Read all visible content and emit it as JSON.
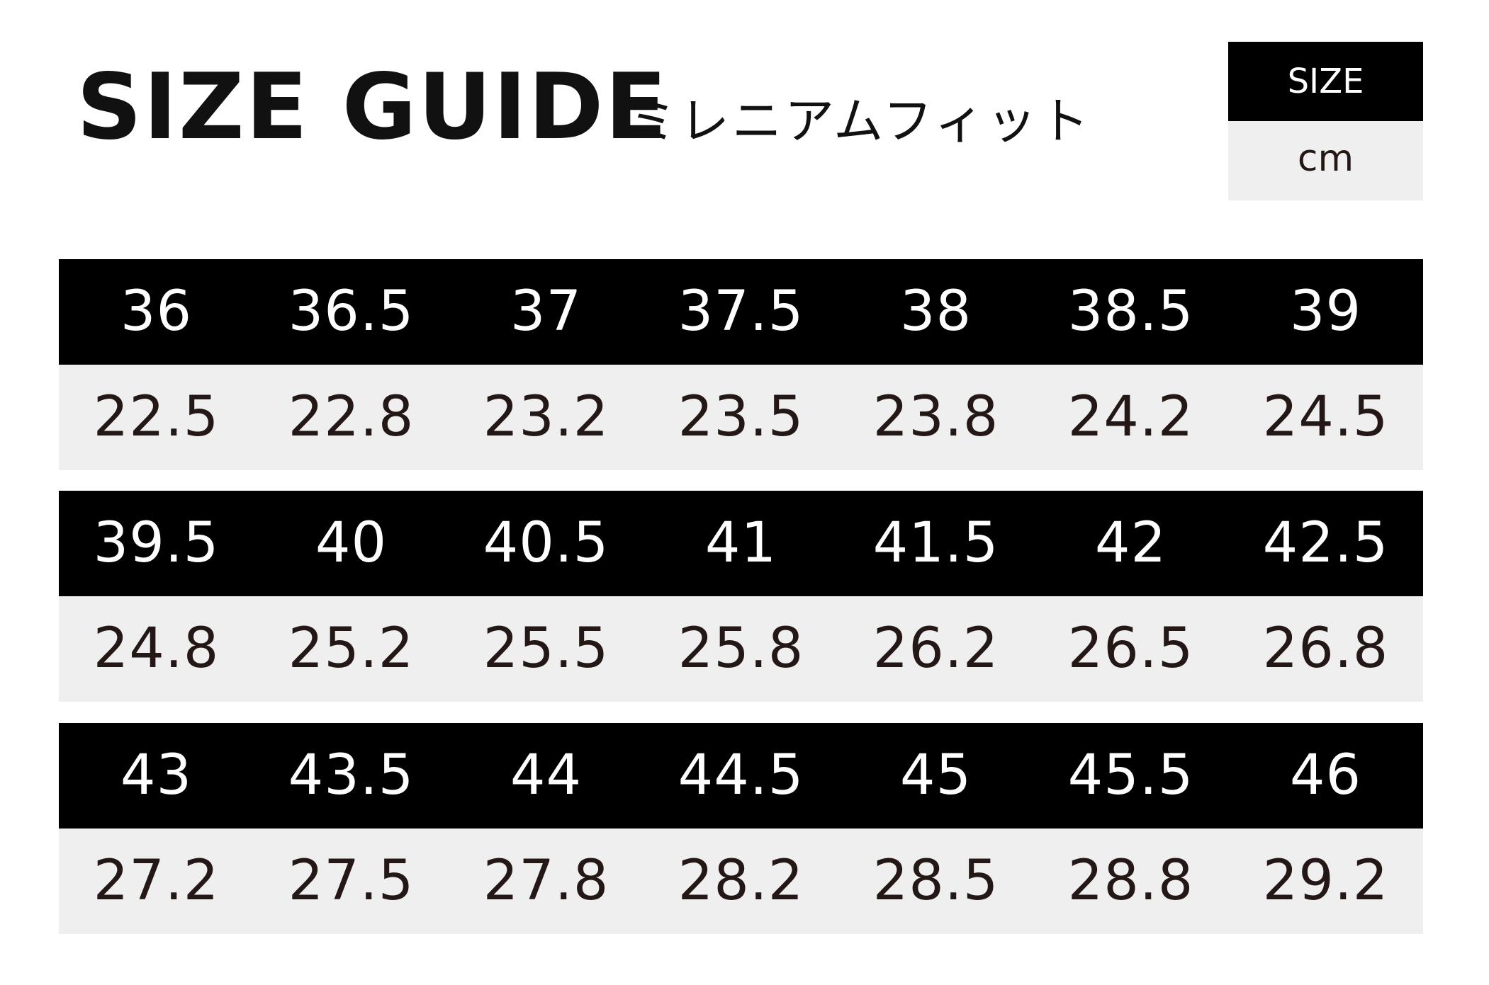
{
  "header": {
    "title": "SIZE GUIDE",
    "subtitle": "ミレニアムフィット"
  },
  "legend": {
    "size_label": "SIZE",
    "unit_label": "cm"
  },
  "colors": {
    "header_bg": "#000000",
    "value_bg": "#efefef",
    "value_text": "#231815"
  },
  "blocks": [
    {
      "sizes": [
        "36",
        "36.5",
        "37",
        "37.5",
        "38",
        "38.5",
        "39"
      ],
      "cm": [
        "22.5",
        "22.8",
        "23.2",
        "23.5",
        "23.8",
        "24.2",
        "24.5"
      ]
    },
    {
      "sizes": [
        "39.5",
        "40",
        "40.5",
        "41",
        "41.5",
        "42",
        "42.5"
      ],
      "cm": [
        "24.8",
        "25.2",
        "25.5",
        "25.8",
        "26.2",
        "26.5",
        "26.8"
      ]
    },
    {
      "sizes": [
        "43",
        "43.5",
        "44",
        "44.5",
        "45",
        "45.5",
        "46"
      ],
      "cm": [
        "27.2",
        "27.5",
        "27.8",
        "28.2",
        "28.5",
        "28.8",
        "29.2"
      ]
    }
  ]
}
